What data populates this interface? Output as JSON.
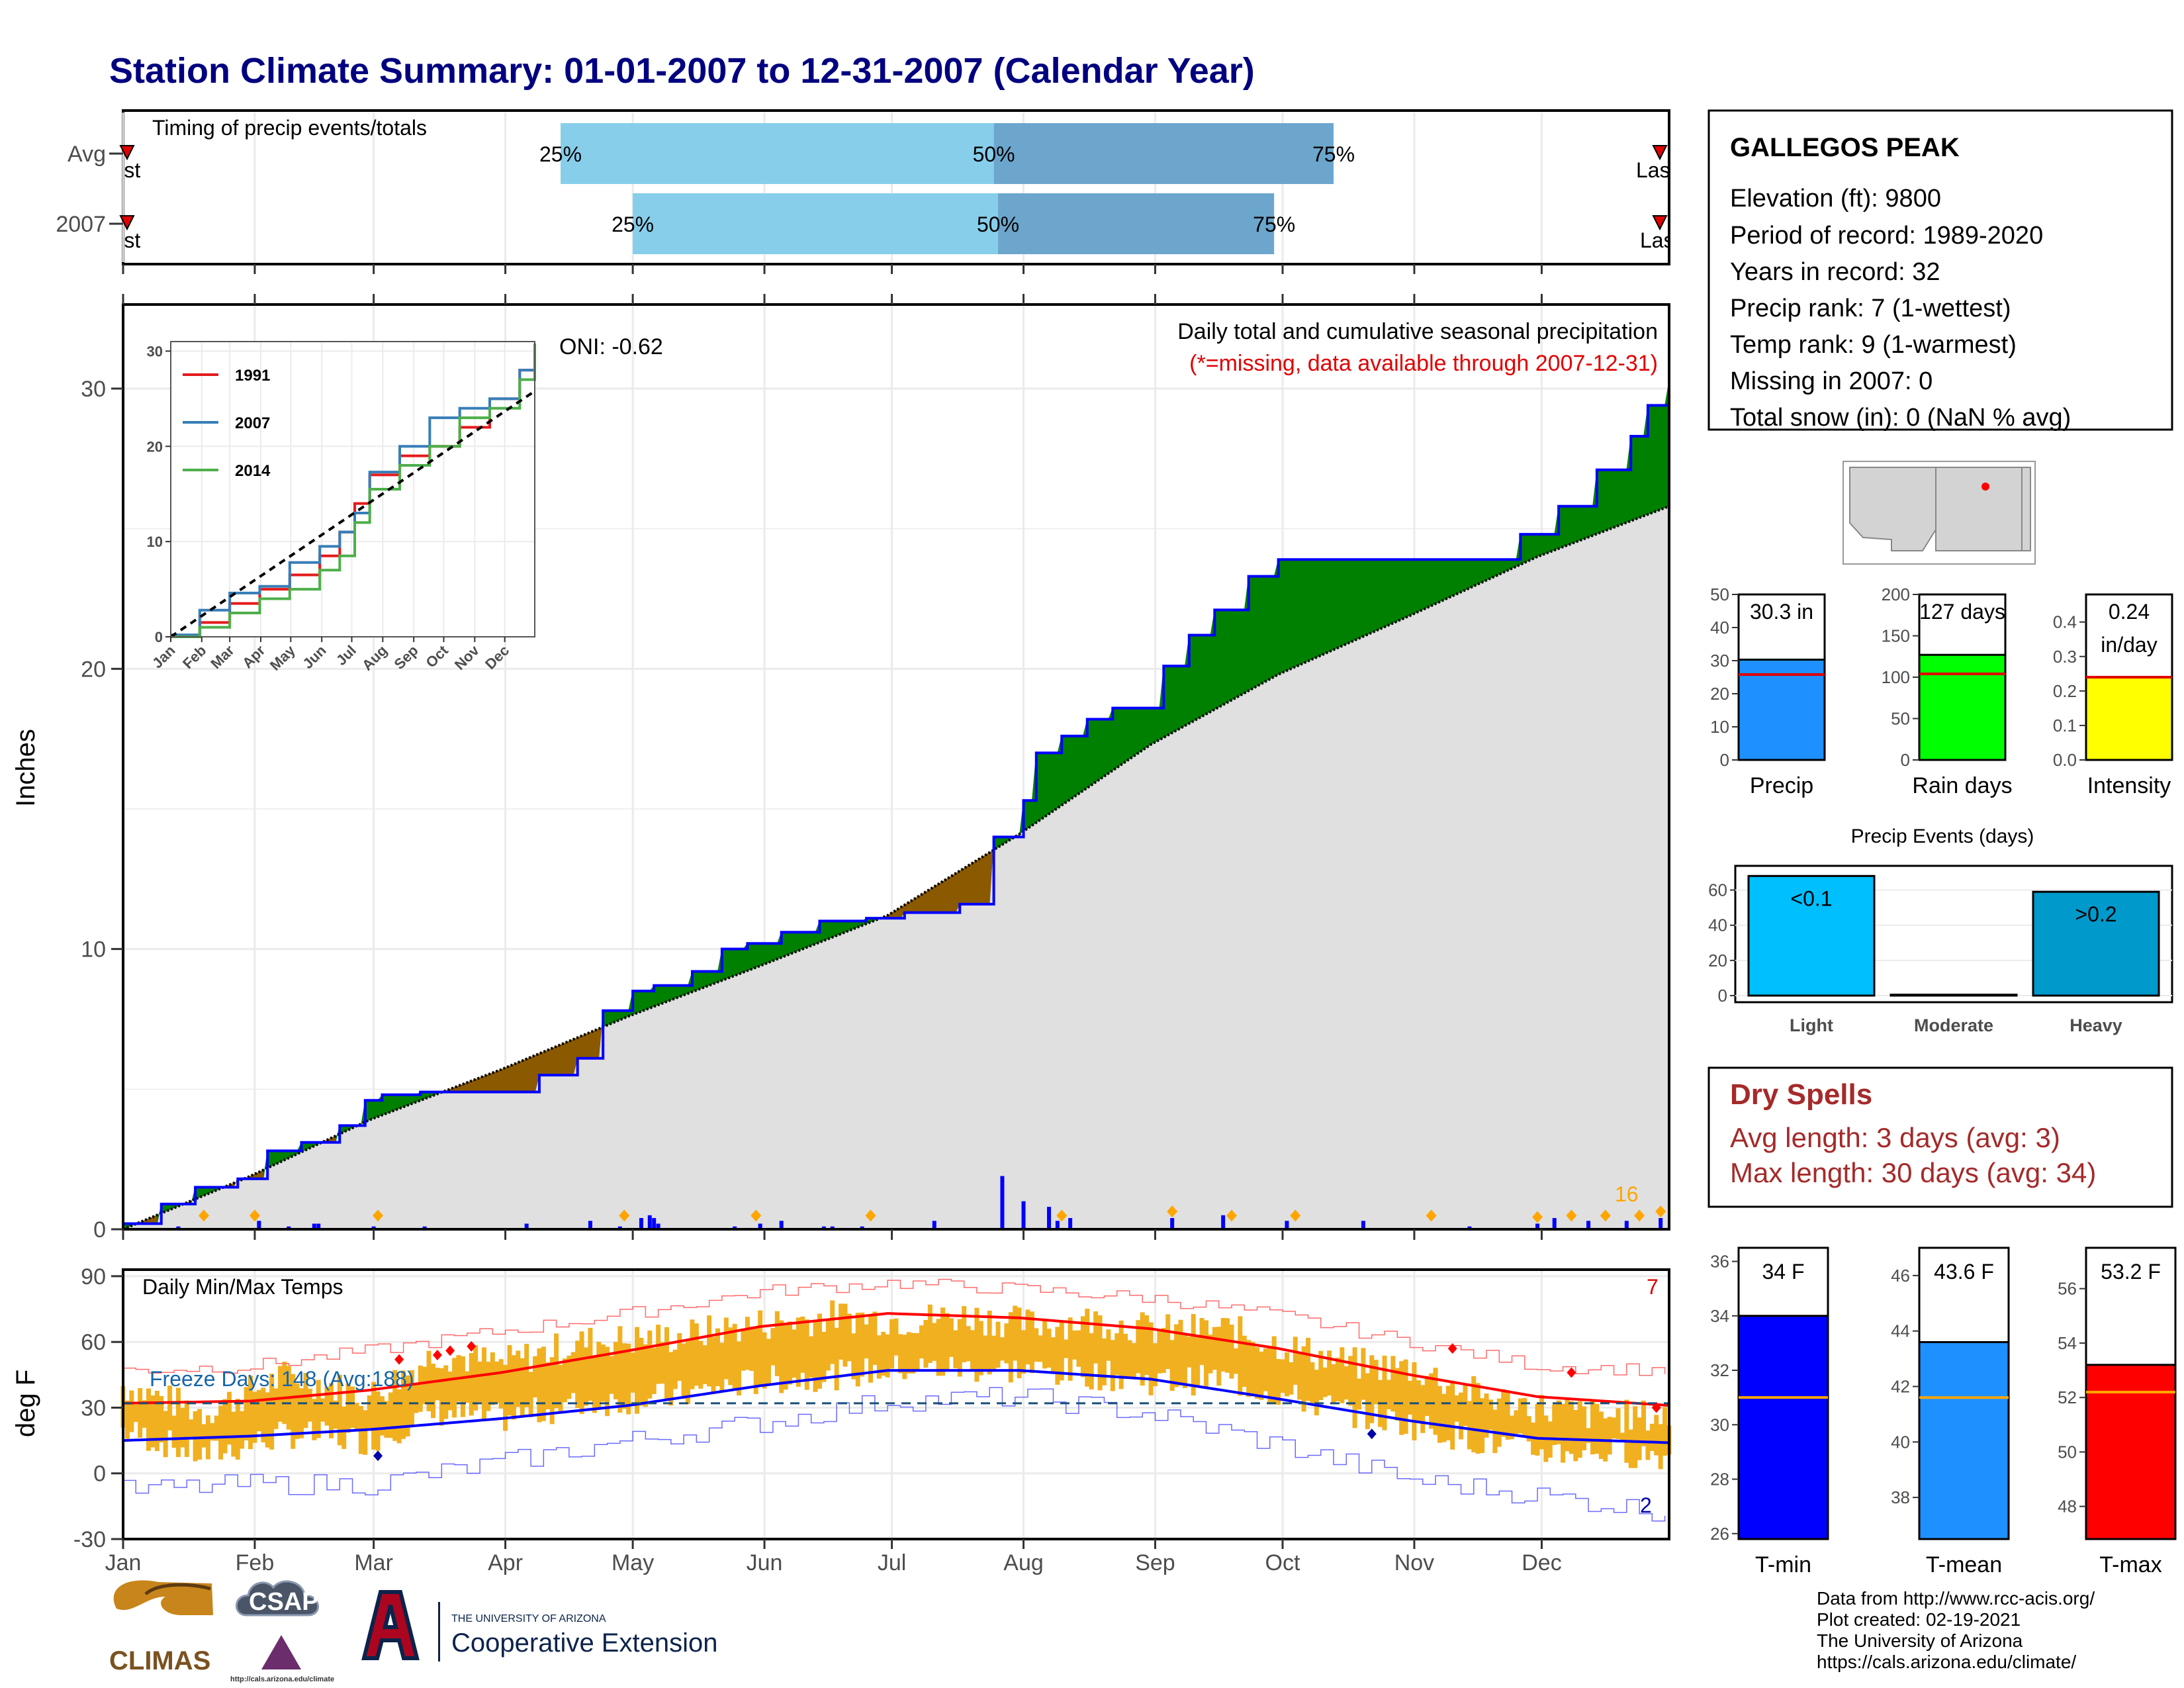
{
  "title": "Station Climate Summary: 01-01-2007 to 12-31-2007 (Calendar Year)",
  "timing": {
    "title": "Timing of precip events/totals",
    "rows": [
      {
        "label": "Avg",
        "first": "First",
        "last": "Last",
        "p25": "25%",
        "p50": "50%",
        "p75": "75%",
        "d25": 104,
        "d50": 206,
        "d75": 286
      },
      {
        "label": "2007",
        "first": "First",
        "last": "Last",
        "p25": "25%",
        "p50": "50%",
        "p75": "75%",
        "d25": 121,
        "d50": 207,
        "d75": 272
      }
    ]
  },
  "station": {
    "name": "GALLEGOS PEAK",
    "lines": [
      "Elevation (ft): 9800",
      "Period of record: 1989-2020",
      "Years in record: 32",
      "Precip rank: 7 (1-wettest)",
      "Temp rank: 9 (1-warmest)",
      "Missing in 2007: 0",
      "Total snow (in): 0 (NaN % avg)"
    ]
  },
  "chart_data": [
    {
      "id": "cumulative-precip",
      "type": "area",
      "ylabel": "Inches",
      "ylim": [
        0,
        33
      ],
      "yticks": [
        0,
        10,
        20,
        30
      ],
      "caption": "Daily total and cumulative seasonal precipitation",
      "caption_missing": "(*=missing, data available through 2007-12-31)",
      "oni": "ONI: -0.62",
      "corner_count": "16",
      "months": [
        "Jan",
        "Feb",
        "Mar",
        "Apr",
        "May",
        "Jun",
        "Jul",
        "Aug",
        "Sep",
        "Oct",
        "Nov",
        "Dec"
      ],
      "series": [
        {
          "name": "2007",
          "x": [
            1,
            10,
            18,
            28,
            35,
            43,
            52,
            58,
            62,
            71,
            78,
            86,
            99,
            108,
            114,
            121,
            126,
            135,
            142,
            148,
            156,
            165,
            176,
            185,
            198,
            206,
            213,
            216,
            222,
            228,
            234,
            246,
            252,
            258,
            266,
            273,
            280,
            298,
            330,
            339,
            348,
            356,
            360,
            365
          ],
          "values": [
            0.2,
            0.9,
            1.5,
            1.8,
            2.8,
            3.1,
            3.7,
            4.6,
            4.8,
            4.9,
            4.9,
            4.9,
            5.5,
            6.1,
            7.8,
            8.5,
            8.7,
            9.2,
            10.0,
            10.2,
            10.6,
            11.0,
            11.1,
            11.3,
            11.6,
            14.0,
            15.3,
            17.0,
            17.6,
            18.2,
            18.6,
            20.1,
            21.2,
            22.1,
            23.3,
            23.9,
            23.9,
            23.9,
            24.8,
            25.8,
            27.1,
            28.3,
            29.4,
            30.3
          ]
        },
        {
          "name": "Avg",
          "x": [
            1,
            31,
            59,
            90,
            120,
            151,
            181,
            212,
            243,
            273,
            304,
            334,
            365
          ],
          "values": [
            0.0,
            1.9,
            3.9,
            5.7,
            7.6,
            9.4,
            11.2,
            14.1,
            17.3,
            19.8,
            21.9,
            24.0,
            25.8
          ]
        }
      ],
      "daily_precip": {
        "x": [
          14,
          33,
          40,
          46,
          47,
          60,
          72,
          96,
          111,
          118,
          123,
          125,
          126,
          127,
          145,
          151,
          156,
          166,
          168,
          175,
          192,
          208,
          213,
          219,
          221,
          224,
          248,
          260,
          275,
          293,
          318,
          334,
          338,
          346,
          355,
          363
        ],
        "values": [
          0.1,
          0.3,
          0.1,
          0.2,
          0.2,
          0.1,
          0.1,
          0.2,
          0.3,
          0.1,
          0.4,
          0.5,
          0.4,
          0.2,
          0.1,
          0.2,
          0.3,
          0.1,
          0.1,
          0.1,
          0.3,
          1.9,
          1.0,
          0.8,
          0.3,
          0.4,
          0.4,
          0.5,
          0.3,
          0.3,
          0.1,
          0.2,
          0.4,
          0.3,
          0.3,
          0.4
        ]
      },
      "extreme_markers_x": [
        20,
        32,
        61,
        119,
        150,
        177,
        222,
        248,
        262,
        277,
        309,
        334,
        342,
        350,
        358,
        363
      ]
    },
    {
      "id": "inset-cumulative",
      "type": "line",
      "ylim": [
        0,
        30
      ],
      "yticks": [
        0,
        10,
        20,
        30
      ],
      "months": [
        "Jan",
        "Feb",
        "Mar",
        "Apr",
        "May",
        "Jun",
        "Jul",
        "Aug",
        "Sep",
        "Oct",
        "Nov",
        "Dec"
      ],
      "series": [
        {
          "name": "1991",
          "x": [
            1,
            30,
            60,
            90,
            120,
            150,
            170,
            185,
            200,
            230,
            260,
            290,
            320,
            350,
            365
          ],
          "values": [
            0,
            1.5,
            3.5,
            5,
            6.5,
            8.5,
            11,
            14,
            17,
            19,
            20,
            22,
            25,
            28,
            30.5
          ]
        },
        {
          "name": "2007",
          "x": [
            1,
            30,
            60,
            90,
            120,
            150,
            170,
            185,
            200,
            230,
            260,
            290,
            320,
            350,
            365
          ],
          "values": [
            0.2,
            2.8,
            4.6,
            5.3,
            7.8,
            9.5,
            11,
            13,
            17.3,
            20,
            23,
            24,
            25,
            28,
            30.3
          ]
        },
        {
          "name": "2014",
          "x": [
            1,
            30,
            60,
            90,
            120,
            150,
            170,
            185,
            200,
            230,
            260,
            290,
            320,
            350,
            365
          ],
          "values": [
            0,
            1,
            2.5,
            4,
            5,
            7,
            8.5,
            12,
            15.5,
            18,
            20,
            23,
            24,
            27,
            30.8
          ]
        },
        {
          "name": "Avg",
          "x": [
            1,
            365
          ],
          "values": [
            0,
            25.8
          ]
        }
      ]
    },
    {
      "id": "precip-totals",
      "type": "bar",
      "categories": [
        "Precip",
        "Rain days",
        "Intensity"
      ],
      "values": [
        30.3,
        127,
        0.24
      ],
      "averages": [
        25.8,
        104,
        0.24
      ],
      "labels": [
        "30.3 in",
        "127 days",
        "0.24",
        "in/day"
      ],
      "axes": [
        {
          "ylim": [
            0,
            50
          ],
          "ticks": [
            0,
            10,
            20,
            30,
            40,
            50
          ]
        },
        {
          "ylim": [
            0,
            200
          ],
          "ticks": [
            0,
            50,
            100,
            150,
            200
          ]
        },
        {
          "ylim": [
            0,
            0.48
          ],
          "ticks": [
            "0.0",
            "0.1",
            "0.2",
            "0.3",
            "0.4"
          ]
        }
      ]
    },
    {
      "id": "precip-events",
      "type": "bar",
      "title": "Precip Events (days)",
      "categories": [
        "Light",
        "Moderate",
        "Heavy"
      ],
      "values": [
        68,
        0.5,
        59
      ],
      "labels": [
        "<0.1",
        "",
        ">0.2"
      ],
      "ylim": [
        0,
        70
      ],
      "yticks": [
        0,
        20,
        40,
        60
      ]
    },
    {
      "id": "daily-temps",
      "type": "line",
      "title": "Daily Min/Max Temps",
      "ylabel": "deg F",
      "ylim": [
        -30,
        93
      ],
      "yticks": [
        -30,
        0,
        30,
        60,
        90
      ],
      "freeze_label": "Freeze Days: 148 (Avg:188)",
      "hot_count": "7",
      "cold_count": "2",
      "months": [
        "Jan",
        "Feb",
        "Mar",
        "Apr",
        "May",
        "Jun",
        "Jul",
        "Aug",
        "Sep",
        "Oct",
        "Nov",
        "Dec"
      ],
      "avg_max": {
        "x": [
          1,
          31,
          59,
          90,
          120,
          151,
          181,
          212,
          243,
          273,
          304,
          334,
          365
        ],
        "values": [
          32,
          33,
          38,
          46,
          56,
          67,
          73,
          71,
          66,
          57,
          45,
          35,
          31
        ]
      },
      "avg_min": {
        "x": [
          1,
          31,
          59,
          90,
          120,
          151,
          181,
          212,
          243,
          273,
          304,
          334,
          365
        ],
        "values": [
          15,
          17,
          20,
          25,
          31,
          40,
          47,
          47,
          43,
          34,
          24,
          16,
          14
        ]
      },
      "record_max": {
        "x": [
          1,
          31,
          59,
          90,
          120,
          151,
          181,
          212,
          243,
          273,
          304,
          334,
          365
        ],
        "values": [
          47,
          49,
          56,
          65,
          73,
          83,
          87,
          84,
          80,
          72,
          60,
          49,
          47
        ]
      },
      "record_min": {
        "x": [
          1,
          31,
          59,
          90,
          120,
          151,
          181,
          212,
          243,
          273,
          304,
          334,
          365
        ],
        "values": [
          -8,
          -5,
          -5,
          5,
          15,
          23,
          33,
          35,
          27,
          13,
          -3,
          -10,
          -18
        ]
      },
      "obs_max": {
        "x": [
          1,
          20,
          40,
          59,
          75,
          90,
          110,
          130,
          150,
          170,
          185,
          200,
          215,
          230,
          245,
          260,
          275,
          290,
          305,
          320,
          335,
          350,
          365
        ],
        "values": [
          40,
          28,
          45,
          35,
          55,
          50,
          60,
          62,
          68,
          72,
          70,
          72,
          68,
          70,
          65,
          66,
          58,
          50,
          48,
          36,
          30,
          26,
          26
        ]
      },
      "obs_min": {
        "x": [
          1,
          20,
          40,
          59,
          75,
          90,
          110,
          130,
          150,
          170,
          185,
          200,
          215,
          230,
          245,
          260,
          275,
          290,
          305,
          320,
          335,
          350,
          365
        ],
        "values": [
          20,
          8,
          18,
          15,
          28,
          25,
          32,
          35,
          42,
          45,
          48,
          48,
          47,
          45,
          42,
          43,
          35,
          28,
          22,
          15,
          10,
          10,
          8
        ]
      },
      "freeze_line": 32
    },
    {
      "id": "temp-summary",
      "type": "bar",
      "categories": [
        "T-min",
        "T-mean",
        "T-max"
      ],
      "values": [
        34,
        43.6,
        53.2
      ],
      "averages": [
        31,
        41.6,
        52.2
      ],
      "labels": [
        "34 F",
        "43.6 F",
        "53.2 F"
      ],
      "axes": [
        {
          "ylim": [
            25.8,
            36.5
          ],
          "ticks": [
            26,
            28,
            30,
            32,
            34,
            36
          ]
        },
        {
          "ylim": [
            36.5,
            47
          ],
          "ticks": [
            38,
            40,
            42,
            44,
            46
          ]
        },
        {
          "ylim": [
            46.8,
            57.5
          ],
          "ticks": [
            48,
            50,
            52,
            54,
            56
          ]
        }
      ]
    }
  ],
  "dry_spells": {
    "title": "Dry Spells",
    "avg": "Avg length: 3 days (avg: 3)",
    "max": "Max length: 30 days (avg: 34)"
  },
  "colors": {
    "title": "#000080",
    "wet": "#008000",
    "dry": "#8B5A00",
    "avg_area": "#E0E0E0",
    "line2007": "#0000FF",
    "precip_bar": "#1E90FF",
    "rain_days_bar": "#00FF00",
    "intensity_bar": "#FFFF00",
    "light_bar": "#00BFFF",
    "heavy_bar": "#0099CC",
    "tmin_bar": "#0000FF",
    "tmean_bar": "#1E90FF",
    "tmax_bar": "#FF0000",
    "dry_spell_text": "#A52A2A"
  },
  "logos": {
    "climas": "CLIMAS",
    "csap": "CSAP",
    "csap_url": "http://cals.arizona.edu/climate",
    "ua_small": "THE UNIVERSITY OF ARIZONA",
    "ua_big": "Cooperative Extension"
  },
  "footer": [
    "Data from http://www.rcc-acis.org/",
    "Plot created: 02-19-2021",
    "The University of Arizona",
    "https://cals.arizona.edu/climate/"
  ]
}
